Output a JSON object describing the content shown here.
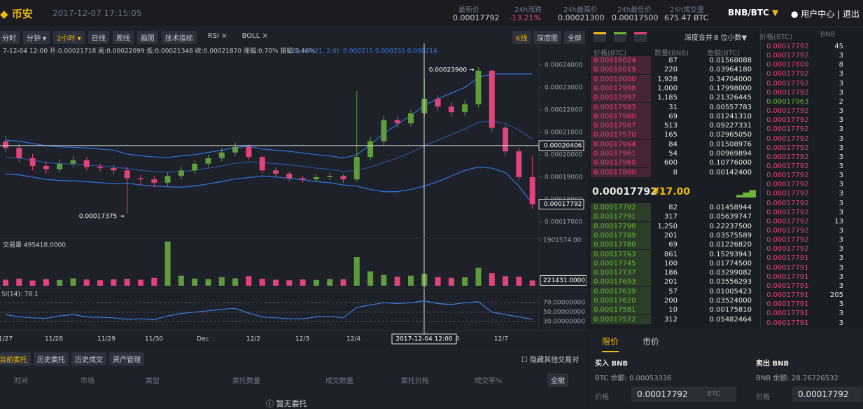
{
  "header": {
    "logo": "币安",
    "time": "2017-12-07 17:15:05",
    "stats": [
      {
        "label": "最新价",
        "value": "0.00017792"
      },
      {
        "label": "24h涨跌",
        "value": "-13.21%"
      },
      {
        "label": "24h最高价",
        "value": "0.00021300"
      },
      {
        "label": "24h最低价",
        "value": "0.00017500"
      },
      {
        "label": "24h成交量",
        "value": "675.47 BTC"
      }
    ],
    "pair": "BNB/BTC",
    "user": "用户中心",
    "logout": "退出"
  },
  "toolbar": {
    "left": [
      "分时",
      "分钟",
      "2小时",
      "日线",
      "周线",
      "画图",
      "技术指标",
      "RSI ×",
      "BOLL ×"
    ],
    "right": [
      "K线",
      "深度图",
      "全屏"
    ]
  },
  "chart": {
    "info": "7-12-04 12:00  开:0.00021718 高:0.00022099 低:0.00021348 收:0.00021870 涨幅:0.70% 振幅:3.46%",
    "bands_label": "Bands(21, 2.0): 0.000215 0.000235 0.000214",
    "ylim": [
      0.0001634,
      0.0002478
    ],
    "yticks": [
      {
        "value": 0.00024,
        "label": "0.00024000"
      },
      {
        "value": 0.00023,
        "label": "0.00023000"
      },
      {
        "value": 0.00022,
        "label": "0.00022000"
      },
      {
        "value": 0.00021,
        "label": "0.00021000"
      },
      {
        "value": 0.0002,
        "label": "0.00020000"
      },
      {
        "value": 0.00019,
        "label": "0.00019000"
      },
      {
        "value": 0.00018,
        "label": "0.00018000"
      },
      {
        "value": 0.00017,
        "label": "0.00017000"
      }
    ],
    "up_color": "#5f9d3c",
    "down_color": "#e0447a",
    "candles": {
      "open": [
        0.000206,
        0.000203,
        0.0001985,
        0.000195,
        0.0001935,
        0.000196,
        0.0001975,
        0.0001945,
        0.000194,
        0.000193,
        0.0001895,
        0.000189,
        0.0001875,
        0.0001905,
        0.000193,
        0.000196,
        0.0001985,
        0.000201,
        0.0002035,
        0.000199,
        0.000193,
        0.0001915,
        0.0001895,
        0.000189,
        0.00019,
        0.0001905,
        0.000189,
        0.000199,
        0.000206,
        0.0002155,
        0.000214,
        0.0002185,
        0.000225,
        0.0002215,
        0.000219,
        0.0002225,
        0.0002375,
        0.000212,
        0.0002015,
        0.00019
      ],
      "high": [
        0.0002085,
        0.000205,
        0.0002005,
        0.000197,
        0.000198,
        0.0001995,
        0.000199,
        0.000196,
        0.0001955,
        0.0001945,
        0.000191,
        0.0001905,
        0.000192,
        0.000195,
        0.0001975,
        0.0002,
        0.000203,
        0.0002055,
        0.0002045,
        0.0002,
        0.0001945,
        0.0001925,
        0.0001905,
        0.0001915,
        0.000192,
        0.0001915,
        0.0002285,
        0.000208,
        0.0002175,
        0.000217,
        0.00022,
        0.000234,
        0.0002265,
        0.0002235,
        0.0002245,
        0.000239,
        0.000238,
        0.0002135,
        0.000203,
        0.0001995
      ],
      "low": [
        0.000201,
        0.0001965,
        0.000193,
        0.0001915,
        0.000192,
        0.0001945,
        0.000193,
        0.0001925,
        0.000191,
        0.00017375,
        0.0001865,
        0.0001855,
        0.000186,
        0.000189,
        0.0001915,
        0.0001945,
        0.000197,
        0.0001995,
        0.0001975,
        0.0001915,
        0.00019,
        0.000188,
        0.0001875,
        0.000188,
        0.0001885,
        0.0001875,
        0.000188,
        0.0001975,
        0.000204,
        0.000212,
        0.0002125,
        0.000217,
        0.0002195,
        0.000217,
        0.0002175,
        0.000221,
        0.00021,
        0.0001995,
        0.000188,
        0.000176
      ],
      "close": [
        0.000203,
        0.0001985,
        0.000195,
        0.0001935,
        0.000196,
        0.0001975,
        0.0001945,
        0.000194,
        0.000193,
        0.0001895,
        0.000189,
        0.0001875,
        0.0001905,
        0.000193,
        0.000196,
        0.0001985,
        0.000201,
        0.0002035,
        0.000199,
        0.000193,
        0.0001915,
        0.0001895,
        0.000189,
        0.00019,
        0.0001905,
        0.000189,
        0.000199,
        0.000206,
        0.0002155,
        0.000214,
        0.0002185,
        0.000225,
        0.0002215,
        0.000219,
        0.0002225,
        0.0002375,
        0.000212,
        0.0002015,
        0.00019,
        0.0001779
      ]
    },
    "bollinger": {
      "color": "#2f6fd6",
      "mid_color": "#2a4f96",
      "upper": [
        0.0002065,
        0.000206,
        0.000205,
        0.000204,
        0.0002035,
        0.0002033,
        0.000203,
        0.0002025,
        0.000202,
        0.0002003,
        0.0001995,
        0.000199,
        0.0001987,
        0.0001995,
        0.0002,
        0.000201,
        0.000202,
        0.0002032,
        0.0002038,
        0.0002025,
        0.000202,
        0.0002015,
        0.0002008,
        0.0002,
        0.0001995,
        0.0001985,
        0.0002,
        0.0002045,
        0.0002095,
        0.0002135,
        0.0002175,
        0.000222,
        0.000225,
        0.0002275,
        0.00023,
        0.0002345,
        0.000236,
        0.000236,
        0.000236,
        0.000236
      ],
      "mid": [
        0.000199,
        0.0001985,
        0.0001975,
        0.0001965,
        0.000196,
        0.0001958,
        0.0001955,
        0.000195,
        0.0001945,
        0.0001938,
        0.000193,
        0.0001925,
        0.0001922,
        0.0001925,
        0.000193,
        0.000194,
        0.000195,
        0.0001962,
        0.0001968,
        0.0001965,
        0.000196,
        0.0001955,
        0.0001948,
        0.000194,
        0.0001935,
        0.0001925,
        0.000193,
        0.0001945,
        0.0001965,
        0.0001985,
        0.000201,
        0.000204,
        0.0002065,
        0.000209,
        0.0002115,
        0.0002145,
        0.000215,
        0.000214,
        0.000211,
        0.000207
      ],
      "lower": [
        0.0001915,
        0.000191,
        0.00019,
        0.000189,
        0.0001885,
        0.0001883,
        0.000188,
        0.0001875,
        0.000187,
        0.0001873,
        0.0001865,
        0.000186,
        0.0001857,
        0.0001855,
        0.000186,
        0.000187,
        0.000188,
        0.0001892,
        0.0001898,
        0.0001905,
        0.00019,
        0.0001895,
        0.0001888,
        0.000188,
        0.0001875,
        0.0001865,
        0.000186,
        0.0001845,
        0.0001835,
        0.0001835,
        0.0001845,
        0.000186,
        0.000188,
        0.0001905,
        0.000193,
        0.0001945,
        0.000194,
        0.000192,
        0.000186,
        0.000178
      ]
    },
    "high_note": "0.00023900 →",
    "low_note": "0.00017375 →",
    "crosshair_price": 0.00020406,
    "last_price": 0.00017792,
    "crosshair_time": "2017-12-04 12:00",
    "x_labels": [
      "1/27",
      "11/28",
      "11/29",
      "11/30",
      "Dec",
      "12/2",
      "12/3",
      "12/4",
      "6",
      "12/7"
    ],
    "volume": {
      "label": "交易量 495418.0000",
      "ylim": [
        0,
        1901574
      ],
      "ticks": [
        {
          "value": 1901574,
          "label": "1901574.00"
        },
        {
          "value": 221431,
          "label": "221431.0000"
        }
      ],
      "values": [
        250000,
        300000,
        220000,
        280000,
        240000,
        310000,
        260000,
        230000,
        270000,
        290000,
        250000,
        330000,
        1850000,
        420000,
        300000,
        280000,
        360000,
        310000,
        400000,
        290000,
        250000,
        230000,
        260000,
        240000,
        280000,
        270000,
        1200000,
        600000,
        450000,
        380000,
        420000,
        500000,
        360000,
        330000,
        350000,
        750000,
        520000,
        400000,
        380000,
        221431
      ]
    },
    "rsi": {
      "label": "SI(14): 78.1",
      "ylim": [
        20,
        88
      ],
      "yticks": [
        {
          "value": 70,
          "label": "70.00000000"
        },
        {
          "value": 50,
          "label": "50.00000000"
        },
        {
          "value": 30,
          "label": "30.00000000"
        }
      ],
      "color": "#3d7be0",
      "values": [
        45,
        40,
        38,
        37,
        42,
        45,
        40,
        39,
        38,
        35,
        36,
        34,
        42,
        47,
        50,
        53,
        56,
        58,
        48,
        40,
        38,
        36,
        36,
        40,
        41,
        38,
        60,
        65,
        70,
        68,
        70,
        74,
        68,
        66,
        70,
        72,
        50,
        45,
        40,
        35
      ]
    }
  },
  "orders": {
    "tabs": [
      "当前委托",
      "历史委托",
      "历史成交",
      "资产管理"
    ],
    "hide": "隐藏其他交易对",
    "columns": [
      "时间",
      "市场",
      "类型",
      "委托数量",
      "成交数量",
      "委托价格",
      "成交率%"
    ],
    "cancel_all": "全撤",
    "empty": "暂无委托"
  },
  "orderbook": {
    "merge": "深度合并",
    "decimals": "8 位小数▼",
    "columns": [
      "价格(BTC)",
      "数量(BNB)",
      "金额(BTC)"
    ],
    "asks": [
      [
        "0.00018024",
        "87",
        "0.01568088"
      ],
      [
        "0.00018019",
        "220",
        "0.03964180"
      ],
      [
        "0.00018000",
        "1,928",
        "0.34704000"
      ],
      [
        "0.00017998",
        "1,000",
        "0.17998000"
      ],
      [
        "0.00017997",
        "1,185",
        "0.21326445"
      ],
      [
        "0.00017983",
        "31",
        "0.00557783"
      ],
      [
        "0.00017980",
        "69",
        "0.01241310"
      ],
      [
        "0.00017987",
        "513",
        "0.09227331"
      ],
      [
        "0.00017970",
        "165",
        "0.02965050"
      ],
      [
        "0.00017964",
        "84",
        "0.01508976"
      ],
      [
        "0.00017961",
        "54",
        "0.00969894"
      ],
      [
        "0.00017960",
        "600",
        "0.10776000"
      ],
      [
        "0.00017800",
        "8",
        "0.00142400"
      ]
    ],
    "current": "0.00017792",
    "current_cny": "¥17.00",
    "bids": [
      [
        "0.00017792",
        "82",
        "0.01458944"
      ],
      [
        "0.00017791",
        "317",
        "0.05639747"
      ],
      [
        "0.00017790",
        "1,250",
        "0.22237500"
      ],
      [
        "0.00017789",
        "201",
        "0.03575589"
      ],
      [
        "0.00017780",
        "69",
        "0.01226820"
      ],
      [
        "0.00017763",
        "861",
        "0.15293943"
      ],
      [
        "0.00017745",
        "100",
        "0.01774500"
      ],
      [
        "0.00017737",
        "186",
        "0.03299082"
      ],
      [
        "0.00017693",
        "201",
        "0.03556293"
      ],
      [
        "0.00017639",
        "57",
        "0.01005423"
      ],
      [
        "0.00017620",
        "200",
        "0.03524000"
      ],
      [
        "0.00017581",
        "10",
        "0.00175810"
      ],
      [
        "0.00017572",
        "312",
        "0.05482464"
      ]
    ]
  },
  "trades": {
    "columns": [
      "价格(BTC)",
      "BNB"
    ],
    "rows": [
      {
        "price": "0.00017792",
        "amount": "45",
        "color": "#e0447a"
      },
      {
        "price": "0.00017792",
        "amount": "3",
        "color": "#e0447a"
      },
      {
        "price": "0.00017800",
        "amount": "8",
        "color": "#e0447a"
      },
      {
        "price": "0.00017792",
        "amount": "3",
        "color": "#e0447a"
      },
      {
        "price": "0.00017792",
        "amount": "3",
        "color": "#e0447a"
      },
      {
        "price": "0.00017792",
        "amount": "3",
        "color": "#e0447a"
      },
      {
        "price": "0.00017963",
        "amount": "2",
        "color": "#6cb53a"
      },
      {
        "price": "0.00017792",
        "amount": "3",
        "color": "#e0447a"
      },
      {
        "price": "0.00017792",
        "amount": "3",
        "color": "#e0447a"
      },
      {
        "price": "0.00017792",
        "amount": "3",
        "color": "#e0447a"
      },
      {
        "price": "0.00017792",
        "amount": "3",
        "color": "#e0447a"
      },
      {
        "price": "0.00017792",
        "amount": "3",
        "color": "#e0447a"
      },
      {
        "price": "0.00017792",
        "amount": "3",
        "color": "#e0447a"
      },
      {
        "price": "0.00017792",
        "amount": "3",
        "color": "#e0447a"
      },
      {
        "price": "0.00017792",
        "amount": "3",
        "color": "#e0447a"
      },
      {
        "price": "0.00017792",
        "amount": "3",
        "color": "#e0447a"
      },
      {
        "price": "0.00017792",
        "amount": "3",
        "color": "#e0447a"
      },
      {
        "price": "0.00017792",
        "amount": "3",
        "color": "#e0447a"
      },
      {
        "price": "0.00017792",
        "amount": "3",
        "color": "#e0447a"
      },
      {
        "price": "0.00017792",
        "amount": "13",
        "color": "#e0447a"
      },
      {
        "price": "0.00017792",
        "amount": "3",
        "color": "#e0447a"
      },
      {
        "price": "0.00017792",
        "amount": "3",
        "color": "#e0447a"
      },
      {
        "price": "0.00017792",
        "amount": "3",
        "color": "#e0447a"
      },
      {
        "price": "0.00017791",
        "amount": "3",
        "color": "#e0447a"
      },
      {
        "price": "0.00017791",
        "amount": "3",
        "color": "#e0447a"
      },
      {
        "price": "0.00017791",
        "amount": "3",
        "color": "#e0447a"
      },
      {
        "price": "0.00017791",
        "amount": "3",
        "color": "#e0447a"
      },
      {
        "price": "0.00017791",
        "amount": "205",
        "color": "#e0447a"
      },
      {
        "price": "0.00017791",
        "amount": "3",
        "color": "#e0447a"
      },
      {
        "price": "0.00017791",
        "amount": "3",
        "color": "#e0447a"
      },
      {
        "price": "0.00017791",
        "amount": "3",
        "color": "#e0447a"
      }
    ]
  },
  "trade_form": {
    "tabs": [
      "限价",
      "市价"
    ],
    "buy": {
      "title": "买入 BNB",
      "balance": "BTC 余额: 0.00053336",
      "price_label": "价格",
      "price": "0.00017792",
      "unit": "BTC"
    },
    "sell": {
      "title": "卖出 BNB",
      "balance": "BNB 余额: 28.76726532",
      "price_label": "价格",
      "price": "0.00017792"
    }
  }
}
